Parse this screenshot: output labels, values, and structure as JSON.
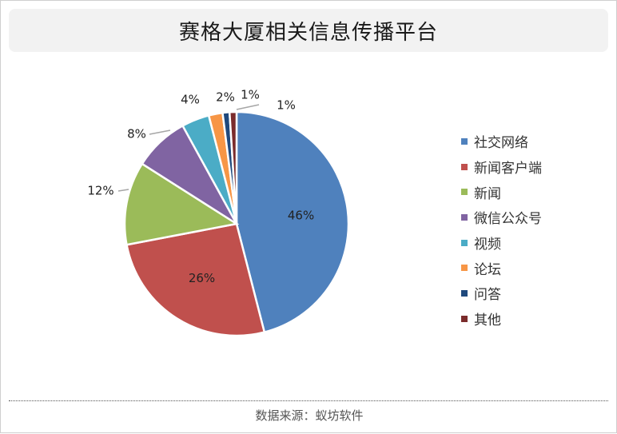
{
  "title": "赛格大厦相关信息传播平台",
  "footer": "数据来源：蚁坊软件",
  "chart_data": {
    "type": "pie",
    "title": "赛格大厦相关信息传播平台",
    "slices": [
      {
        "label": "社交网络",
        "value": 46,
        "display": "46%",
        "color": "#4F81BD"
      },
      {
        "label": "新闻客户端",
        "value": 26,
        "display": "26%",
        "color": "#C0504D"
      },
      {
        "label": "新闻",
        "value": 12,
        "display": "12%",
        "color": "#9BBB59"
      },
      {
        "label": "微信公众号",
        "value": 8,
        "display": "8%",
        "color": "#8064A2"
      },
      {
        "label": "视频",
        "value": 4,
        "display": "4%",
        "color": "#4BACC6"
      },
      {
        "label": "论坛",
        "value": 2,
        "display": "2%",
        "color": "#F79646"
      },
      {
        "label": "问答",
        "value": 1,
        "display": "1%",
        "color": "#1F497D"
      },
      {
        "label": "其他",
        "value": 1,
        "display": "1%",
        "color": "#7B2C2C"
      }
    ],
    "legend_position": "right"
  }
}
